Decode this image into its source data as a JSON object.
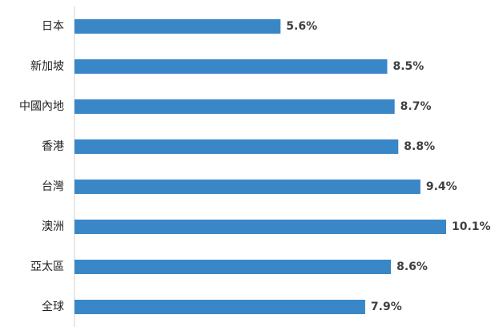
{
  "chart_data": {
    "type": "bar",
    "orientation": "horizontal",
    "categories": [
      "日本",
      "新加坡",
      "中國內地",
      "香港",
      "台灣",
      "澳洲",
      "亞太區",
      "全球"
    ],
    "values": [
      5.6,
      8.5,
      8.7,
      8.8,
      9.4,
      10.1,
      8.6,
      7.9
    ],
    "value_labels": [
      "5.6%",
      "8.5%",
      "8.7%",
      "8.8%",
      "9.4%",
      "10.1%",
      "8.6%",
      "7.9%"
    ],
    "title": "",
    "xlabel": "",
    "ylabel": "",
    "xlim": [
      0,
      10.1
    ],
    "grid": false,
    "legend": "none",
    "bar_color": "#3a87c8",
    "axis_color": "#d0d0d0"
  }
}
